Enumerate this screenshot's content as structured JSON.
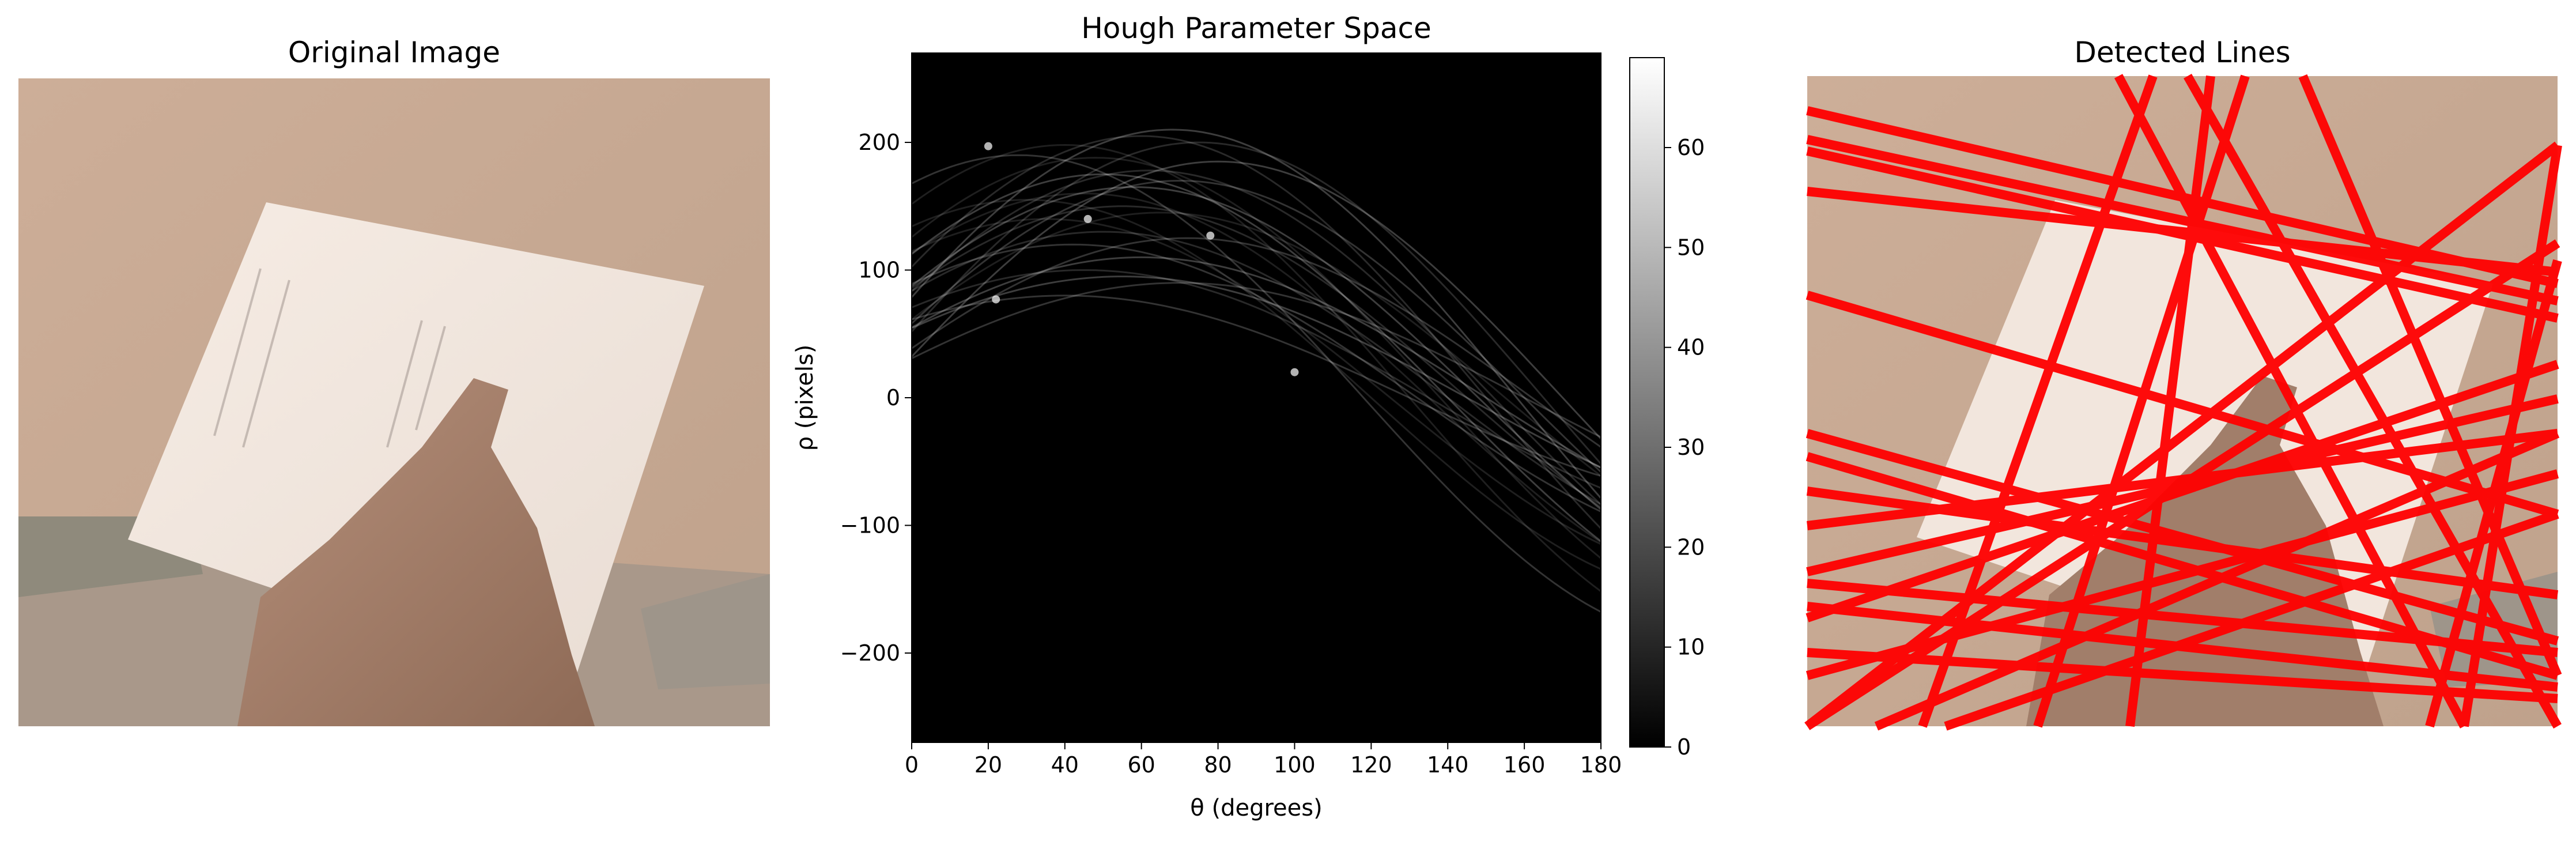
{
  "figure": {
    "left_title": "Original Image",
    "middle_title": "Hough Parameter Space",
    "right_title": "Detected Lines"
  },
  "colors": {
    "line_color": "#ff0000",
    "background": "#ffffff",
    "photo_wall": "#c9a890",
    "paper": "#f2e6dd"
  },
  "chart_data": [
    {
      "type": "heatmap",
      "title": "Hough Parameter Space",
      "xlabel": "θ (degrees)",
      "ylabel": "ρ (pixels)",
      "xlim": [
        0,
        180
      ],
      "ylim": [
        -270,
        270
      ],
      "xticks": [
        0,
        20,
        40,
        60,
        80,
        100,
        120,
        140,
        160,
        180
      ],
      "yticks": [
        200,
        100,
        0,
        -100,
        -200
      ],
      "colormap": "gray",
      "colorbar": {
        "min": 0,
        "max": 69,
        "ticks": [
          0,
          10,
          20,
          30,
          40,
          50,
          60
        ]
      },
      "bright_peaks": [
        {
          "theta": 20,
          "rho": 197
        },
        {
          "theta": 22,
          "rho": 77
        },
        {
          "theta": 46,
          "rho": 140
        },
        {
          "theta": 78,
          "rho": 127
        },
        {
          "theta": 100,
          "rho": 20
        }
      ]
    }
  ]
}
